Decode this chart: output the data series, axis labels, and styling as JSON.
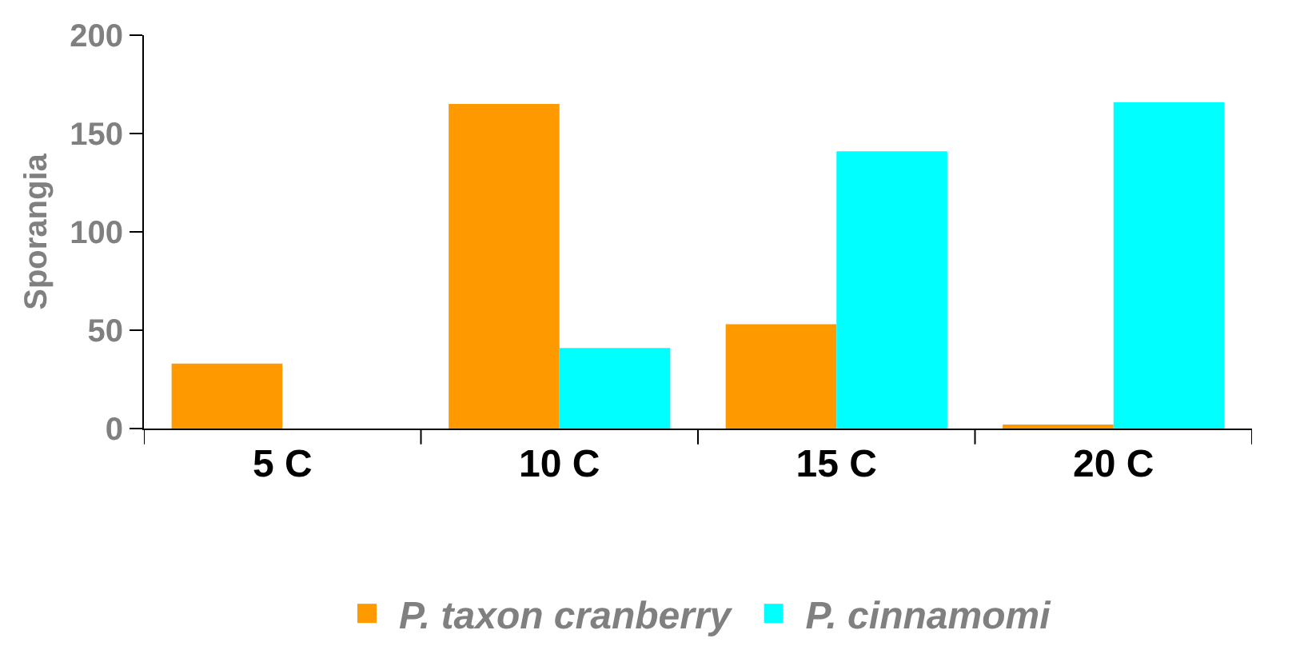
{
  "chart_data": {
    "type": "bar",
    "ylabel": "Sporangia",
    "categories": [
      "5 C",
      "10 C",
      "15 C",
      "20 C"
    ],
    "series": [
      {
        "name": "P. taxon cranberry",
        "color": "#ff9900",
        "values": [
          33,
          165,
          53,
          2
        ]
      },
      {
        "name": "P. cinnamomi",
        "color": "#00ffff",
        "values": [
          0,
          41,
          141,
          166
        ]
      }
    ],
    "ylim": [
      0,
      200
    ],
    "yticks": [
      0,
      50,
      100,
      150,
      200
    ],
    "legend": "bottom"
  }
}
